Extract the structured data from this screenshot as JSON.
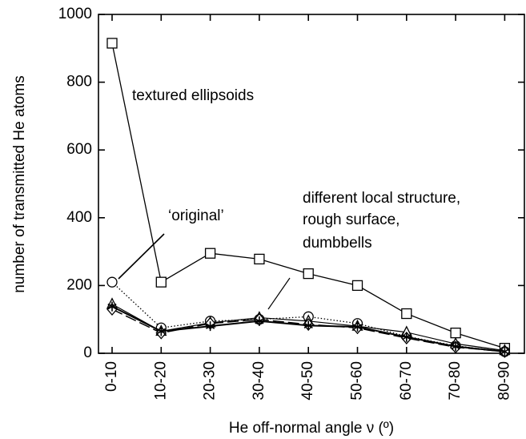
{
  "chart_data": {
    "type": "line",
    "x_label": "He off-normal angle ν (º)",
    "y_label": "number of transmitted He atoms",
    "categories": [
      "0-10",
      "10-20",
      "20-30",
      "30-40",
      "40-50",
      "50-60",
      "60-70",
      "70-80",
      "80-90"
    ],
    "series": [
      {
        "color": "#000000",
        "marker": "square",
        "line_style": "solid",
        "values": [
          915,
          210,
          295,
          278,
          235,
          200,
          117,
          60,
          15
        ]
      },
      {
        "color": "#000000",
        "marker": "circle",
        "line_style": "dotted",
        "values": [
          210,
          75,
          95,
          100,
          108,
          88,
          50,
          22,
          5
        ]
      },
      {
        "color": "#000000",
        "marker": "triangle",
        "line_style": "solid",
        "values": [
          145,
          65,
          90,
          105,
          95,
          80,
          62,
          28,
          8
        ]
      },
      {
        "color": "#000000",
        "marker": "diamond",
        "line_style": "dashed",
        "values": [
          130,
          60,
          88,
          100,
          85,
          75,
          45,
          18,
          5
        ]
      },
      {
        "color": "#000000",
        "marker": "star",
        "line_style": "solid",
        "values": [
          138,
          65,
          80,
          95,
          82,
          78,
          48,
          20,
          5
        ]
      }
    ],
    "annotations": [
      "textured ellipsoids",
      "‘original’",
      "different local structure,",
      "rough surface,",
      "dumbbells"
    ],
    "ylim": [
      0,
      1000
    ],
    "yticks": [
      0,
      200,
      400,
      600,
      800,
      1000
    ]
  }
}
